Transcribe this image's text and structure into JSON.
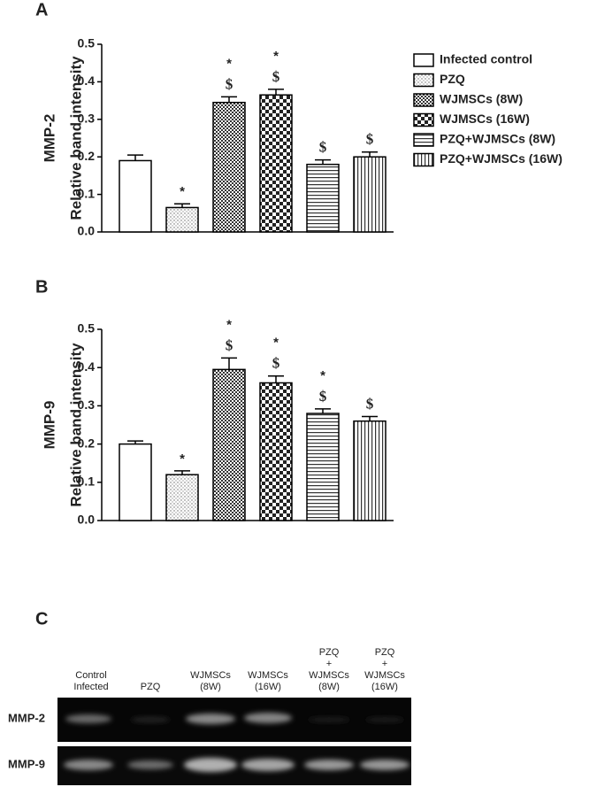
{
  "chart_data": [
    {
      "type": "bar",
      "panel": "A",
      "row_label": "MMP-2",
      "ylabel": "Relative band intensity",
      "categories": [
        "Infected control",
        "PZQ",
        "WJMSCs (8W)",
        "WJMSCs (16W)",
        "PZQ+WJMSCs (8W)",
        "PZQ+WJMSCs (16W)"
      ],
      "values": [
        0.19,
        0.065,
        0.345,
        0.365,
        0.18,
        0.2
      ],
      "errors": [
        0.015,
        0.01,
        0.015,
        0.015,
        0.012,
        0.013
      ],
      "markers": [
        null,
        [
          "*"
        ],
        [
          "*",
          "$"
        ],
        [
          "*",
          "$"
        ],
        [
          "$"
        ],
        [
          "$"
        ]
      ],
      "ylim": [
        0,
        0.5
      ],
      "yticks": [
        {
          "value": 0,
          "label": "0.0"
        },
        0.1,
        0.2,
        0.3,
        0.4,
        0.5
      ]
    },
    {
      "type": "bar",
      "panel": "B",
      "row_label": "MMP-9",
      "ylabel": "Relative band intensity",
      "values": [
        0.2,
        0.12,
        0.395,
        0.36,
        0.28,
        0.26
      ],
      "errors": [
        0.008,
        0.01,
        0.03,
        0.018,
        0.012,
        0.012
      ],
      "markers": [
        null,
        [
          "*"
        ],
        [
          "*",
          "$"
        ],
        [
          "*",
          "$"
        ],
        [
          "*",
          "$"
        ],
        [
          "$"
        ]
      ],
      "ylim": [
        0,
        0.5
      ],
      "yticks": [
        {
          "value": 0,
          "label": "0.0"
        },
        0.1,
        0.2,
        0.3,
        0.4,
        0.5
      ]
    }
  ],
  "gel": {
    "panel": "C",
    "rows": [
      "MMP-2",
      "MMP-9"
    ],
    "lanes": [
      [
        "Control",
        "Infected"
      ],
      [
        "PZQ"
      ],
      [
        "WJMSCs",
        "(8W)"
      ],
      [
        "WJMSCs",
        "(16W)"
      ],
      [
        "PZQ",
        "+",
        "WJMSCs",
        "(8W)"
      ],
      [
        "PZQ",
        "+",
        "WJMSCs",
        "(16W)"
      ]
    ]
  }
}
